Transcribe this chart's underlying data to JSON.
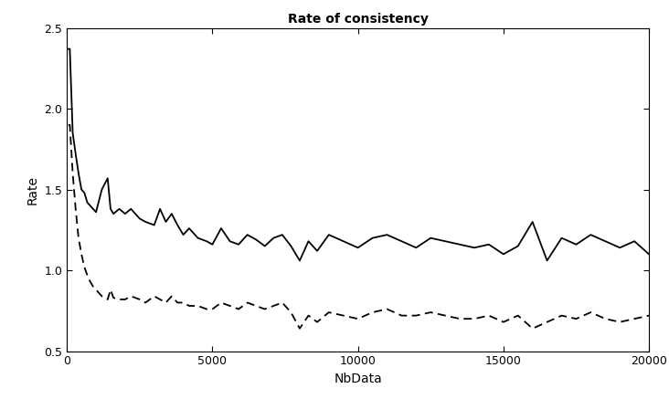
{
  "title": "Rate of consistency",
  "xlabel": "NbData",
  "ylabel": "Rate",
  "xlim": [
    0,
    20000
  ],
  "ylim": [
    0.5,
    2.5
  ],
  "yticks": [
    0.5,
    1.0,
    1.5,
    2.0,
    2.5
  ],
  "xticks": [
    0,
    5000,
    10000,
    15000,
    20000
  ],
  "background_color": "#ffffff",
  "title_fontweight": "bold",
  "solid_x": [
    50,
    100,
    200,
    300,
    400,
    500,
    600,
    700,
    800,
    900,
    1000,
    1200,
    1400,
    1500,
    1600,
    1800,
    2000,
    2200,
    2500,
    2700,
    3000,
    3200,
    3400,
    3600,
    3800,
    4000,
    4200,
    4500,
    4800,
    5000,
    5300,
    5600,
    5900,
    6200,
    6500,
    6800,
    7100,
    7400,
    7700,
    8000,
    8300,
    8600,
    9000,
    9500,
    10000,
    10500,
    11000,
    11500,
    12000,
    12500,
    13000,
    13500,
    14000,
    14500,
    15000,
    15500,
    16000,
    16500,
    17000,
    17500,
    18000,
    18500,
    19000,
    19500,
    20000
  ],
  "solid_y": [
    2.37,
    2.37,
    1.85,
    1.72,
    1.6,
    1.5,
    1.48,
    1.42,
    1.4,
    1.38,
    1.36,
    1.5,
    1.57,
    1.38,
    1.35,
    1.38,
    1.35,
    1.38,
    1.32,
    1.3,
    1.28,
    1.38,
    1.3,
    1.35,
    1.28,
    1.22,
    1.26,
    1.2,
    1.18,
    1.16,
    1.26,
    1.18,
    1.16,
    1.22,
    1.19,
    1.15,
    1.2,
    1.22,
    1.15,
    1.06,
    1.18,
    1.12,
    1.22,
    1.18,
    1.14,
    1.2,
    1.22,
    1.18,
    1.14,
    1.2,
    1.18,
    1.16,
    1.14,
    1.16,
    1.1,
    1.15,
    1.3,
    1.06,
    1.2,
    1.16,
    1.22,
    1.18,
    1.14,
    1.18,
    1.1
  ],
  "dashed_x": [
    50,
    100,
    200,
    300,
    400,
    500,
    600,
    700,
    800,
    900,
    1000,
    1200,
    1400,
    1500,
    1600,
    1800,
    2000,
    2200,
    2500,
    2700,
    3000,
    3200,
    3400,
    3600,
    3800,
    4000,
    4200,
    4500,
    4800,
    5000,
    5300,
    5600,
    5900,
    6200,
    6500,
    6800,
    7100,
    7400,
    7700,
    8000,
    8300,
    8600,
    9000,
    9500,
    10000,
    10500,
    11000,
    11500,
    12000,
    12500,
    13000,
    13500,
    14000,
    14500,
    15000,
    15500,
    16000,
    16500,
    17000,
    17500,
    18000,
    18500,
    19000,
    19500,
    20000
  ],
  "dashed_y": [
    1.9,
    1.9,
    1.6,
    1.38,
    1.2,
    1.1,
    1.02,
    0.97,
    0.93,
    0.9,
    0.88,
    0.84,
    0.82,
    0.88,
    0.83,
    0.82,
    0.82,
    0.84,
    0.82,
    0.8,
    0.84,
    0.82,
    0.8,
    0.84,
    0.8,
    0.8,
    0.78,
    0.78,
    0.76,
    0.76,
    0.8,
    0.78,
    0.76,
    0.8,
    0.78,
    0.76,
    0.78,
    0.8,
    0.74,
    0.64,
    0.72,
    0.68,
    0.74,
    0.72,
    0.7,
    0.74,
    0.76,
    0.72,
    0.72,
    0.74,
    0.72,
    0.7,
    0.7,
    0.72,
    0.68,
    0.72,
    0.64,
    0.68,
    0.72,
    0.7,
    0.74,
    0.7,
    0.68,
    0.7,
    0.72
  ]
}
